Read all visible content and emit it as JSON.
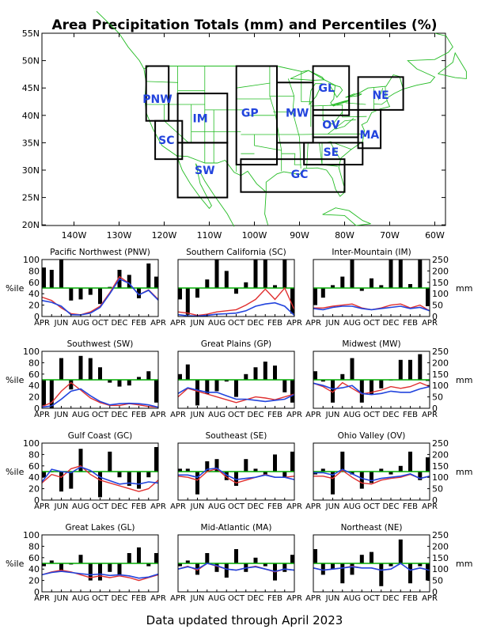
{
  "title": "Area Precipitation Totals (mm) and Percentiles (%)",
  "footer": "Data updated through April 2023",
  "colors": {
    "bars": "#000000",
    "percentile_line": "#e03030",
    "amount_line": "#2244dd",
    "median_line": "#00aa00",
    "map_lines": "#22bb22",
    "region_labels": "#2244dd"
  },
  "map": {
    "lat_ticks": [
      "55N",
      "50N",
      "45N",
      "40N",
      "35N",
      "30N",
      "25N",
      "20N"
    ],
    "lon_ticks": [
      "140W",
      "130W",
      "120W",
      "110W",
      "100W",
      "90W",
      "80W",
      "70W",
      "60W"
    ],
    "regions": [
      {
        "code": "PNW",
        "lon": [
          -124,
          -119
        ],
        "lat": [
          39,
          49
        ],
        "label_lon": -121.5,
        "label_lat": 43
      },
      {
        "code": "SC",
        "lon": [
          -122,
          -116
        ],
        "lat": [
          32,
          39
        ],
        "label_lon": -119.5,
        "label_lat": 35.5
      },
      {
        "code": "IM",
        "lon": [
          -117,
          -106
        ],
        "lat": [
          35,
          44
        ],
        "label_lon": -112,
        "label_lat": 39.5
      },
      {
        "code": "SW",
        "lon": [
          -117,
          -106
        ],
        "lat": [
          25,
          35
        ],
        "label_lon": -111,
        "label_lat": 30
      },
      {
        "code": "GP",
        "lon": [
          -104,
          -95
        ],
        "lat": [
          31,
          49
        ],
        "label_lon": -101,
        "label_lat": 40.5
      },
      {
        "code": "MW",
        "lon": [
          -95,
          -87
        ],
        "lat": [
          35,
          46
        ],
        "label_lon": -90.5,
        "label_lat": 40.5
      },
      {
        "code": "GL",
        "lon": [
          -87,
          -79
        ],
        "lat": [
          40,
          49
        ],
        "label_lon": -84,
        "label_lat": 45
      },
      {
        "code": "NE",
        "lon": [
          -77,
          -67
        ],
        "lat": [
          41,
          47
        ],
        "label_lon": -72,
        "label_lat": 43.7
      },
      {
        "code": "OV",
        "lon": [
          -87,
          -77
        ],
        "lat": [
          36,
          41
        ],
        "label_lon": -83,
        "label_lat": 38.3
      },
      {
        "code": "MA",
        "lon": [
          -77,
          -72
        ],
        "lat": [
          34,
          41
        ],
        "label_lon": -74.5,
        "label_lat": 36.5
      },
      {
        "code": "SE",
        "lon": [
          -89,
          -76
        ],
        "lat": [
          31,
          35
        ],
        "label_lon": -83,
        "label_lat": 33.3
      },
      {
        "code": "GC",
        "lon": [
          -103,
          -80
        ],
        "lat": [
          26,
          32
        ],
        "label_lon": -90,
        "label_lat": 29.3
      }
    ]
  },
  "chart_data": [
    {
      "type": "bar",
      "title": "Pacific Northwest (PNW)",
      "code": "PNW",
      "months": [
        "APR",
        "",
        "JUN",
        "",
        "AUG",
        "",
        "OCT",
        "",
        "DEC",
        "",
        "FEB",
        "",
        "APR"
      ],
      "left_ylabel": "%ile",
      "right_ylabel": "mm",
      "left_ticks": [
        0,
        20,
        40,
        60,
        80,
        100
      ],
      "right_ticks": [
        0,
        50,
        100,
        150,
        200,
        250
      ],
      "ylim_pct": [
        0,
        100
      ],
      "ylim_mm": [
        0,
        250
      ],
      "median_pct": 50,
      "percentiles": [
        86,
        82,
        100,
        28,
        30,
        38,
        22,
        52,
        82,
        73,
        32,
        93,
        70
      ],
      "amount_pct": [
        34,
        28,
        15,
        5,
        3,
        8,
        18,
        42,
        70,
        58,
        38,
        47,
        30
      ],
      "amount_mm": [
        70,
        62,
        45,
        8,
        7,
        15,
        40,
        100,
        165,
        145,
        95,
        115,
        72
      ]
    },
    {
      "type": "bar",
      "title": "Southern California (SC)",
      "code": "SC",
      "months": [
        "APR",
        "",
        "JUN",
        "",
        "AUG",
        "",
        "OCT",
        "",
        "DEC",
        "",
        "FEB",
        "",
        "APR"
      ],
      "left_ylabel": "%ile",
      "right_ylabel": "mm",
      "left_ticks": [
        0,
        20,
        40,
        60,
        80,
        100
      ],
      "right_ticks": [
        0,
        50,
        100,
        150,
        200,
        250
      ],
      "ylim_pct": [
        0,
        100
      ],
      "ylim_mm": [
        0,
        250
      ],
      "median_pct": 50,
      "percentiles": [
        30,
        3,
        33,
        65,
        100,
        80,
        40,
        60,
        100,
        100,
        55,
        100,
        5
      ],
      "amount_pct": [
        8,
        6,
        2,
        4,
        8,
        10,
        12,
        20,
        30,
        48,
        30,
        50,
        12
      ],
      "amount_mm": [
        8,
        3,
        2,
        5,
        10,
        12,
        15,
        25,
        45,
        55,
        60,
        45,
        5
      ]
    },
    {
      "type": "bar",
      "title": "Inter-Mountain (IM)",
      "code": "IM",
      "months": [
        "APR",
        "",
        "JUN",
        "",
        "AUG",
        "",
        "OCT",
        "",
        "DEC",
        "",
        "FEB",
        "",
        "APR"
      ],
      "left_ylabel": "%ile",
      "right_ylabel": "mm",
      "left_ticks": [
        0,
        20,
        40,
        60,
        80,
        100
      ],
      "right_ticks": [
        0,
        50,
        100,
        150,
        200,
        250
      ],
      "ylim_pct": [
        0,
        100
      ],
      "ylim_mm": [
        0,
        250
      ],
      "median_pct": 50,
      "percentiles": [
        20,
        33,
        55,
        70,
        100,
        45,
        67,
        55,
        100,
        100,
        57,
        100,
        18
      ],
      "amount_pct": [
        15,
        15,
        18,
        20,
        22,
        15,
        12,
        15,
        20,
        22,
        15,
        20,
        10
      ],
      "amount_mm": [
        35,
        30,
        40,
        45,
        45,
        35,
        30,
        35,
        40,
        45,
        35,
        40,
        25
      ]
    },
    {
      "type": "bar",
      "title": "Southwest (SW)",
      "code": "SW",
      "months": [
        "APR",
        "",
        "JUN",
        "",
        "AUG",
        "",
        "OCT",
        "",
        "DEC",
        "",
        "FEB",
        "",
        "APR"
      ],
      "left_ylabel": "%ile",
      "right_ylabel": "mm",
      "left_ticks": [
        0,
        20,
        40,
        60,
        80,
        100
      ],
      "right_ticks": [
        0,
        50,
        100,
        150,
        200,
        250
      ],
      "ylim_pct": [
        0,
        100
      ],
      "ylim_mm": [
        0,
        250
      ],
      "median_pct": 50,
      "percentiles": [
        5,
        0,
        88,
        33,
        92,
        88,
        72,
        45,
        38,
        40,
        55,
        65,
        10
      ],
      "amount_pct": [
        3,
        10,
        30,
        45,
        32,
        18,
        10,
        5,
        5,
        8,
        6,
        3,
        2
      ],
      "amount_mm": [
        5,
        10,
        40,
        75,
        85,
        55,
        30,
        15,
        20,
        22,
        20,
        15,
        5
      ]
    },
    {
      "type": "bar",
      "title": "Great Plains (GP)",
      "code": "GP",
      "months": [
        "APR",
        "",
        "JUN",
        "",
        "AUG",
        "",
        "OCT",
        "",
        "DEC",
        "",
        "FEB",
        "",
        "APR"
      ],
      "left_ylabel": "%ile",
      "right_ylabel": "mm",
      "left_ticks": [
        0,
        20,
        40,
        60,
        80,
        100
      ],
      "right_ticks": [
        0,
        50,
        100,
        150,
        200,
        250
      ],
      "ylim_pct": [
        0,
        100
      ],
      "ylim_mm": [
        0,
        250
      ],
      "median_pct": 50,
      "percentiles": [
        60,
        77,
        5,
        25,
        30,
        47,
        20,
        60,
        72,
        82,
        75,
        28,
        10
      ],
      "amount_pct": [
        20,
        35,
        30,
        25,
        20,
        15,
        10,
        15,
        20,
        18,
        15,
        20,
        25
      ],
      "amount_mm": [
        65,
        90,
        80,
        70,
        70,
        55,
        40,
        40,
        35,
        30,
        35,
        40,
        60
      ]
    },
    {
      "type": "bar",
      "title": "Midwest (MW)",
      "code": "MW",
      "months": [
        "APR",
        "",
        "JUN",
        "",
        "AUG",
        "",
        "OCT",
        "",
        "DEC",
        "",
        "FEB",
        "",
        "APR"
      ],
      "left_ylabel": "%ile",
      "right_ylabel": "mm",
      "left_ticks": [
        0,
        20,
        40,
        60,
        80,
        100
      ],
      "right_ticks": [
        0,
        50,
        100,
        150,
        200,
        250
      ],
      "ylim_pct": [
        0,
        100
      ],
      "ylim_mm": [
        0,
        250
      ],
      "median_pct": 50,
      "percentiles": [
        65,
        47,
        10,
        60,
        88,
        10,
        25,
        35,
        50,
        85,
        85,
        95,
        48
      ],
      "amount_pct": [
        44,
        38,
        28,
        45,
        35,
        25,
        28,
        32,
        38,
        35,
        38,
        45,
        38
      ],
      "amount_mm": [
        110,
        100,
        85,
        90,
        100,
        65,
        60,
        65,
        75,
        70,
        70,
        85,
        95
      ]
    },
    {
      "type": "bar",
      "title": "Gulf Coast (GC)",
      "code": "GC",
      "months": [
        "APR",
        "",
        "JUN",
        "",
        "AUG",
        "",
        "OCT",
        "",
        "DEC",
        "",
        "FEB",
        "",
        "APR"
      ],
      "left_ylabel": "%ile",
      "right_ylabel": "mm",
      "left_ticks": [
        0,
        20,
        40,
        60,
        80,
        100
      ],
      "right_ticks": [
        0,
        50,
        100,
        150,
        200,
        250
      ],
      "ylim_pct": [
        0,
        100
      ],
      "ylim_mm": [
        0,
        250
      ],
      "median_pct": 50,
      "percentiles": [
        40,
        50,
        15,
        20,
        90,
        50,
        5,
        85,
        40,
        25,
        20,
        40,
        93
      ],
      "amount_pct": [
        30,
        45,
        40,
        55,
        60,
        45,
        35,
        30,
        25,
        20,
        15,
        20,
        35
      ],
      "amount_mm": [
        80,
        135,
        125,
        120,
        145,
        130,
        100,
        85,
        70,
        75,
        70,
        80,
        75
      ]
    },
    {
      "type": "bar",
      "title": "Southeast (SE)",
      "code": "SE",
      "months": [
        "APR",
        "",
        "JUN",
        "",
        "AUG",
        "",
        "OCT",
        "",
        "DEC",
        "",
        "FEB",
        "",
        "APR"
      ],
      "left_ylabel": "%ile",
      "right_ylabel": "mm",
      "left_ticks": [
        0,
        20,
        40,
        60,
        80,
        100
      ],
      "right_ticks": [
        0,
        50,
        100,
        150,
        200,
        250
      ],
      "ylim_pct": [
        0,
        100
      ],
      "ylim_mm": [
        0,
        250
      ],
      "median_pct": 50,
      "percentiles": [
        55,
        55,
        10,
        68,
        72,
        35,
        25,
        72,
        55,
        45,
        80,
        40,
        85
      ],
      "amount_pct": [
        42,
        40,
        35,
        50,
        55,
        40,
        30,
        35,
        40,
        45,
        40,
        40,
        42
      ],
      "amount_mm": [
        110,
        110,
        100,
        135,
        140,
        110,
        90,
        95,
        100,
        110,
        100,
        100,
        90
      ]
    },
    {
      "type": "bar",
      "title": "Ohio Valley (OV)",
      "code": "OV",
      "months": [
        "APR",
        "",
        "JUN",
        "",
        "AUG",
        "",
        "OCT",
        "",
        "DEC",
        "",
        "FEB",
        "",
        "APR"
      ],
      "left_ylabel": "%ile",
      "right_ylabel": "mm",
      "left_ticks": [
        0,
        20,
        40,
        60,
        80,
        100
      ],
      "right_ticks": [
        0,
        50,
        100,
        150,
        200,
        250
      ],
      "ylim_pct": [
        0,
        100
      ],
      "ylim_mm": [
        0,
        250
      ],
      "median_pct": 50,
      "percentiles": [
        45,
        55,
        10,
        85,
        45,
        20,
        30,
        55,
        45,
        60,
        85,
        35,
        75
      ],
      "amount_pct": [
        42,
        42,
        38,
        52,
        40,
        30,
        28,
        35,
        38,
        40,
        45,
        38,
        42
      ],
      "amount_mm": [
        120,
        120,
        110,
        135,
        115,
        95,
        85,
        95,
        100,
        105,
        115,
        95,
        105
      ]
    },
    {
      "type": "bar",
      "title": "Great Lakes (GL)",
      "code": "GL",
      "months": [
        "APR",
        "",
        "JUN",
        "",
        "AUG",
        "",
        "OCT",
        "",
        "DEC",
        "",
        "FEB",
        "",
        "APR"
      ],
      "left_ylabel": "%ile",
      "right_ylabel": "mm",
      "left_ticks": [
        0,
        20,
        40,
        60,
        80,
        100
      ],
      "right_ticks": [
        0,
        50,
        100,
        150,
        200,
        250
      ],
      "ylim_pct": [
        0,
        100
      ],
      "ylim_mm": [
        0,
        250
      ],
      "median_pct": 50,
      "percentiles": [
        45,
        55,
        35,
        48,
        65,
        20,
        20,
        35,
        30,
        68,
        78,
        45,
        68
      ],
      "amount_pct": [
        30,
        35,
        38,
        35,
        30,
        25,
        28,
        25,
        28,
        25,
        20,
        25,
        30
      ],
      "amount_mm": [
        75,
        85,
        90,
        85,
        80,
        75,
        78,
        72,
        75,
        70,
        60,
        65,
        78
      ]
    },
    {
      "type": "bar",
      "title": "Mid-Atlantic (MA)",
      "code": "MA",
      "months": [
        "APR",
        "",
        "JUN",
        "",
        "AUG",
        "",
        "OCT",
        "",
        "DEC",
        "",
        "FEB",
        "",
        "APR"
      ],
      "left_ylabel": "%ile",
      "right_ylabel": "mm",
      "left_ticks": [
        0,
        20,
        40,
        60,
        80,
        100
      ],
      "right_ticks": [
        0,
        50,
        100,
        150,
        200,
        250
      ],
      "ylim_pct": [
        0,
        100
      ],
      "ylim_mm": [
        0,
        250
      ],
      "median_pct": 50,
      "percentiles": [
        45,
        55,
        30,
        68,
        35,
        25,
        75,
        35,
        60,
        45,
        20,
        35,
        65
      ],
      "amount_pct": [
        40,
        45,
        38,
        50,
        45,
        40,
        38,
        42,
        45,
        40,
        35,
        40,
        38
      ],
      "amount_mm": [
        100,
        110,
        100,
        125,
        115,
        100,
        95,
        105,
        110,
        100,
        90,
        100,
        95
      ]
    },
    {
      "type": "bar",
      "title": "Northeast (NE)",
      "code": "NE",
      "months": [
        "APR",
        "",
        "JUN",
        "",
        "AUG",
        "",
        "OCT",
        "",
        "DEC",
        "",
        "FEB",
        "",
        "APR"
      ],
      "left_ylabel": "%ile",
      "right_ylabel": "mm",
      "left_ticks": [
        0,
        20,
        40,
        60,
        80,
        100
      ],
      "right_ticks": [
        0,
        50,
        100,
        150,
        200,
        250
      ],
      "ylim_pct": [
        0,
        100
      ],
      "ylim_mm": [
        0,
        250
      ],
      "median_pct": 50,
      "percentiles": [
        75,
        30,
        40,
        15,
        30,
        65,
        70,
        10,
        45,
        92,
        15,
        45,
        20
      ],
      "amount_pct": [
        42,
        38,
        40,
        42,
        45,
        42,
        42,
        38,
        40,
        50,
        38,
        42,
        38
      ],
      "amount_mm": [
        105,
        95,
        100,
        105,
        110,
        105,
        105,
        95,
        100,
        125,
        95,
        105,
        95
      ]
    }
  ]
}
